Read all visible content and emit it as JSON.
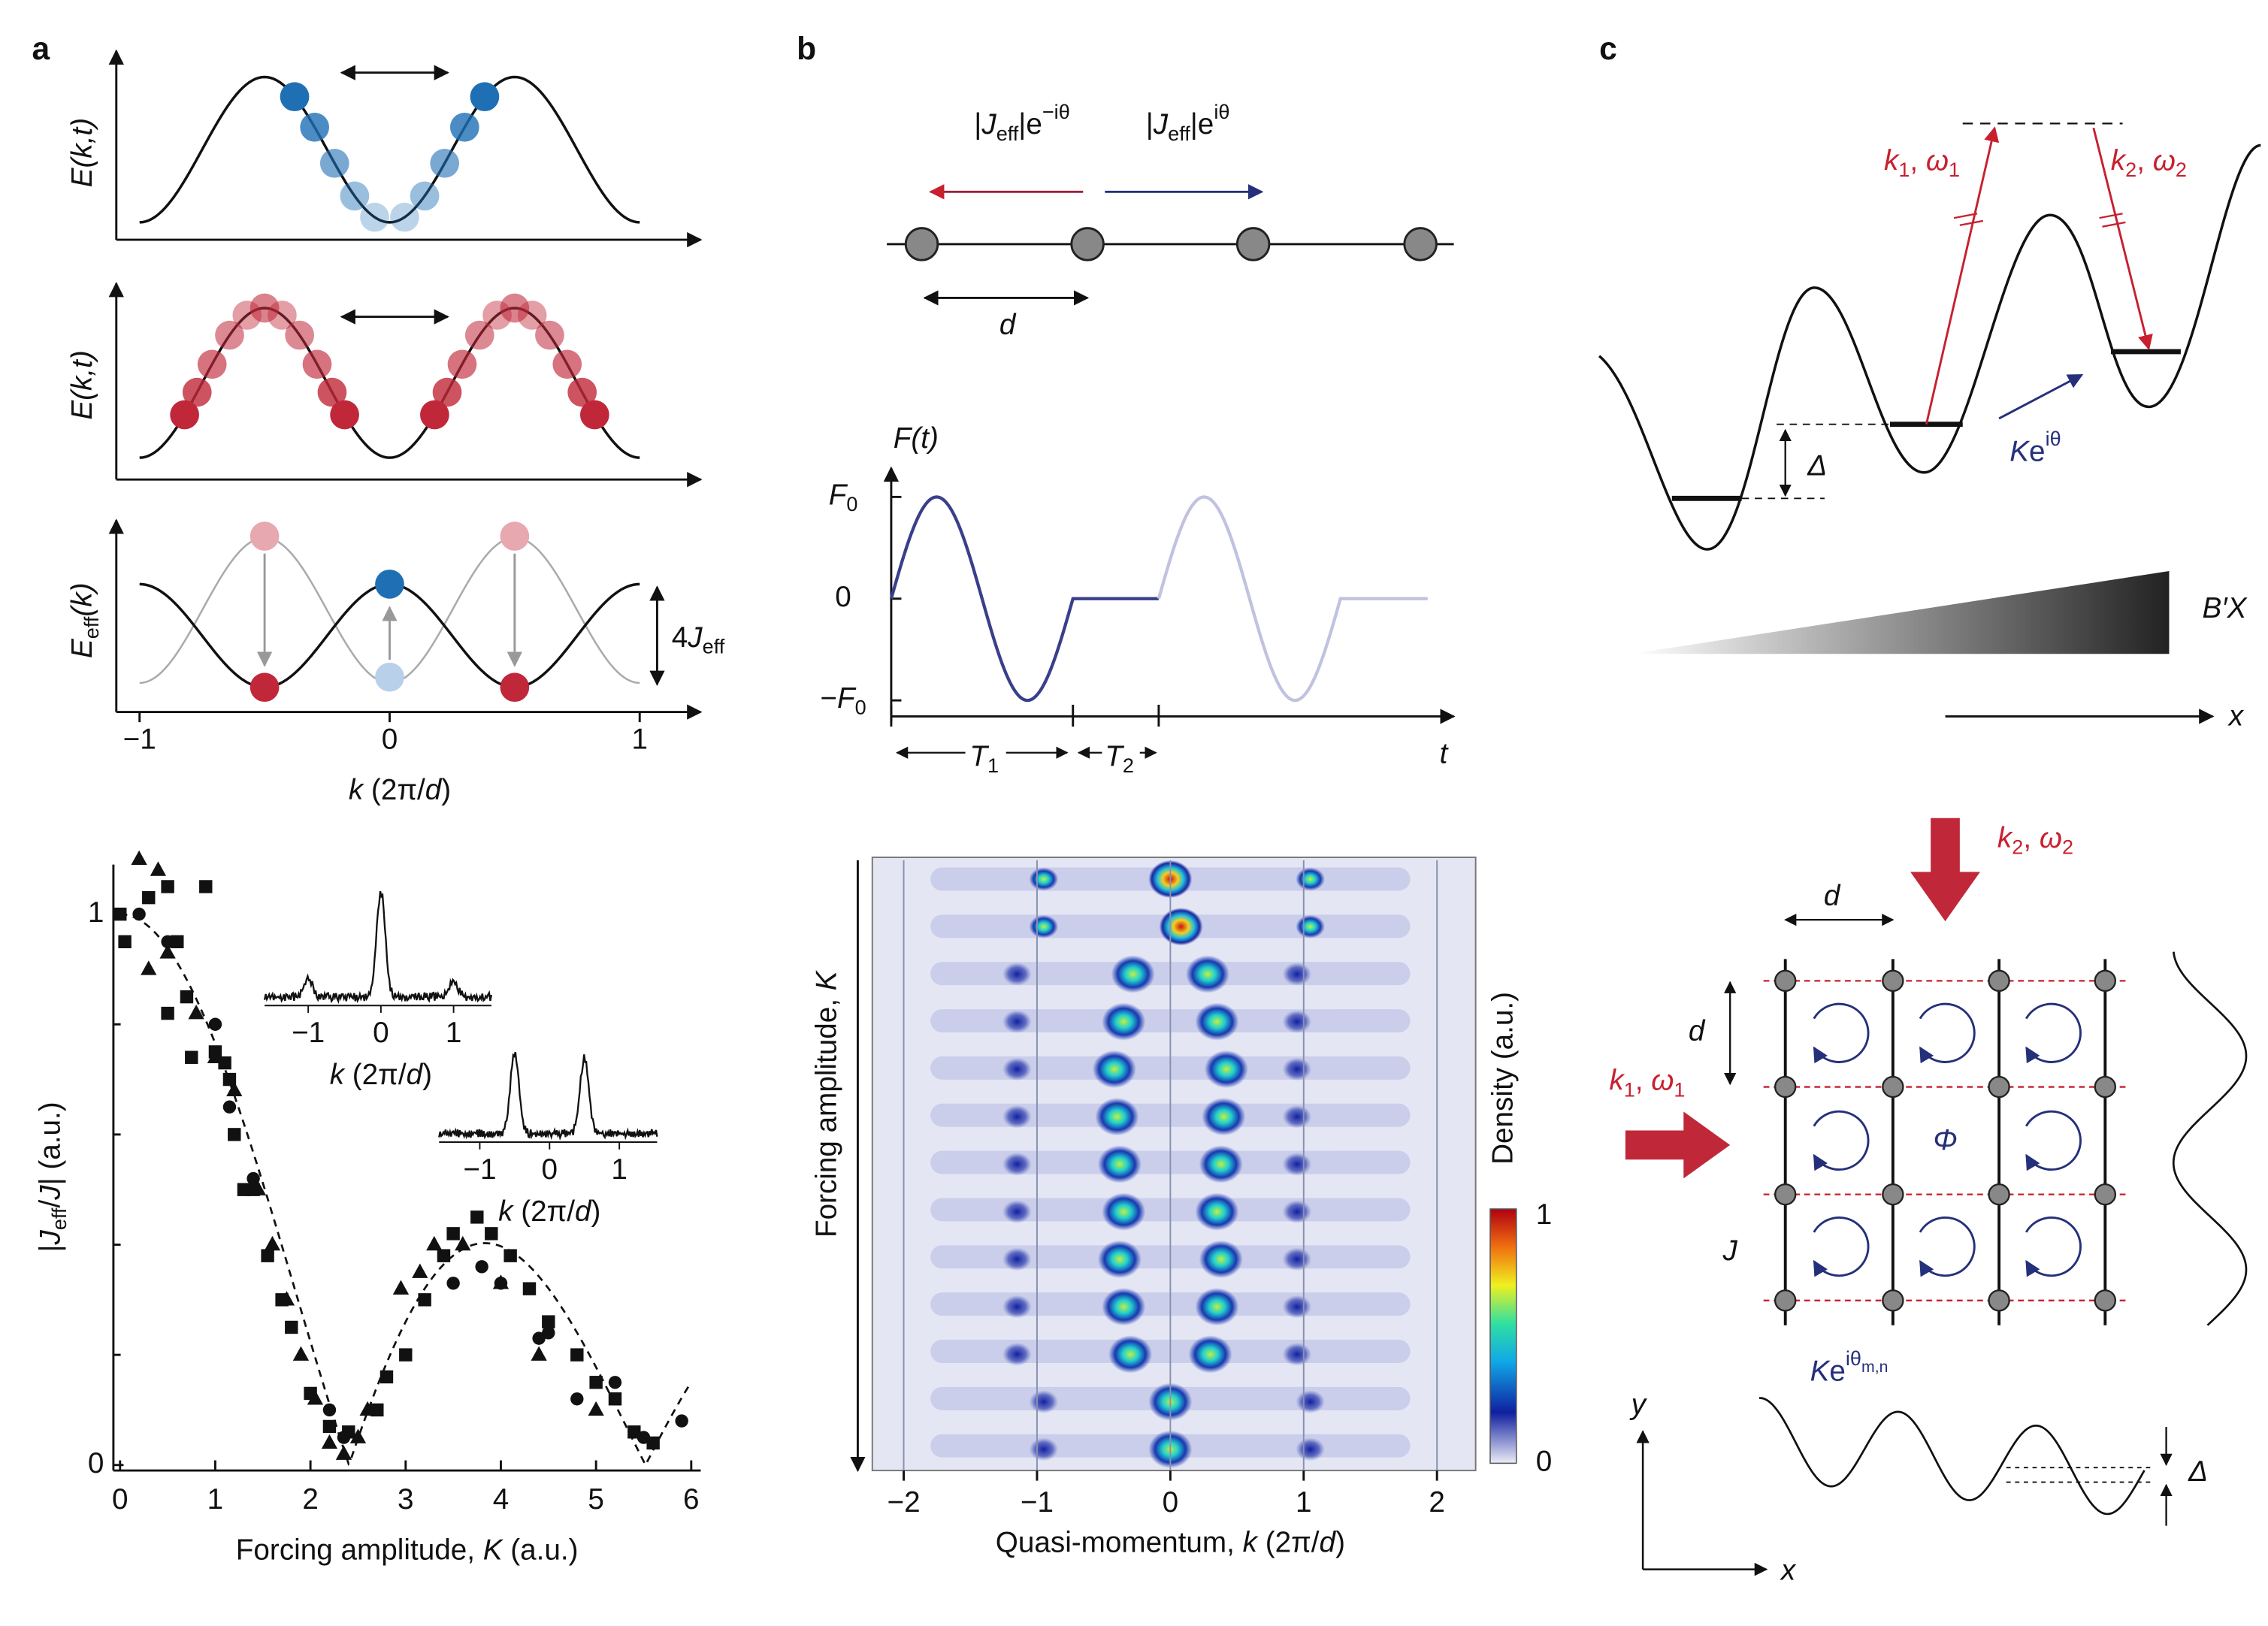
{
  "panel_labels": [
    "a",
    "b",
    "c"
  ],
  "a": {
    "E_kt": [
      {
        "t": "E(k,t)",
        "s": "i"
      }
    ],
    "E_eff": [
      {
        "t": "E",
        "s": "i"
      },
      {
        "t": "eff",
        "s": "sub"
      },
      {
        "t": "(k)",
        "s": "i"
      }
    ],
    "four_J_eff": [
      {
        "t": "4"
      },
      {
        "t": "J",
        "s": "i"
      },
      {
        "t": "eff",
        "s": "sub"
      }
    ],
    "k_ticks": [
      {
        "value": -1,
        "label": "−1"
      },
      0,
      1
    ],
    "k_label": [
      {
        "t": "k",
        "s": "i"
      },
      {
        "t": " (2π/"
      },
      {
        "t": "d",
        "s": "i"
      },
      {
        "t": ")"
      }
    ],
    "scatter": {
      "xlim": [
        -0.07,
        6.1
      ],
      "ylim": [
        -0.01,
        1.09
      ],
      "xticks": [
        0,
        1,
        2,
        3,
        4,
        5,
        6
      ],
      "yticks": [
        0,
        1
      ],
      "y_minor_ticks": [
        0.2,
        0.4,
        0.6,
        0.8
      ],
      "x_label": [
        {
          "t": "Forcing amplitude, "
        },
        {
          "t": "K",
          "s": "i"
        },
        {
          "t": " (a.u.)"
        }
      ],
      "y_label": [
        {
          "t": "|"
        },
        {
          "t": "J",
          "s": "i"
        },
        {
          "t": "eff",
          "s": "sub"
        },
        {
          "t": "/"
        },
        {
          "t": "J",
          "s": "i"
        },
        {
          "t": "| (a.u.)"
        }
      ],
      "series": [
        {
          "marker": "square",
          "x": [
            0,
            0.05,
            0.3,
            0.5,
            0.6,
            0.9,
            0.5,
            0.7,
            0.75,
            1.0,
            1.1,
            1.15,
            1.2,
            1.3,
            1.4,
            1.55,
            1.7,
            1.8,
            2.0,
            2.2,
            2.4,
            2.7,
            2.8,
            3.0,
            3.2,
            3.4,
            3.5,
            3.75,
            3.9,
            4.1,
            4.3,
            4.5,
            4.8,
            5.0,
            5.2,
            5.4,
            5.6
          ],
          "y": [
            1.0,
            0.95,
            1.03,
            1.05,
            0.95,
            1.05,
            0.82,
            0.85,
            0.74,
            0.75,
            0.73,
            0.7,
            0.6,
            0.5,
            0.5,
            0.38,
            0.3,
            0.25,
            0.13,
            0.07,
            0.06,
            0.1,
            0.16,
            0.2,
            0.3,
            0.38,
            0.42,
            0.45,
            0.42,
            0.38,
            0.32,
            0.26,
            0.2,
            0.15,
            0.12,
            0.06,
            0.04
          ]
        },
        {
          "marker": "triangle",
          "x": [
            0.2,
            0.4,
            0.3,
            0.5,
            0.8,
            1.0,
            1.2,
            1.45,
            1.6,
            1.75,
            1.9,
            2.05,
            2.2,
            2.35,
            2.5,
            2.6,
            2.95,
            3.15,
            3.3,
            3.6,
            4.0,
            4.4,
            5.0
          ],
          "y": [
            1.1,
            1.08,
            0.9,
            0.93,
            0.82,
            0.74,
            0.68,
            0.5,
            0.4,
            0.3,
            0.2,
            0.12,
            0.04,
            0.02,
            0.05,
            0.1,
            0.32,
            0.35,
            0.4,
            0.4,
            0.33,
            0.2,
            0.1
          ]
        },
        {
          "marker": "circle",
          "x": [
            0.2,
            0.5,
            1.0,
            1.15,
            1.4,
            2.2,
            2.35,
            3.5,
            3.8,
            4.0,
            4.4,
            4.5,
            4.8,
            5.2,
            5.5,
            5.9
          ],
          "y": [
            1.0,
            0.95,
            0.8,
            0.65,
            0.52,
            0.1,
            0.05,
            0.33,
            0.36,
            0.33,
            0.23,
            0.24,
            0.12,
            0.15,
            0.05,
            0.08
          ]
        }
      ],
      "insets": [
        {
          "ticks": [
            {
              "value": -1,
              "label": "−1"
            },
            0,
            1
          ],
          "x_label": [
            {
              "t": "k",
              "s": "i"
            },
            {
              "t": " (2π/"
            },
            {
              "t": "d",
              "s": "i"
            },
            {
              "t": ")"
            }
          ]
        },
        {
          "ticks": [
            {
              "value": -1,
              "label": "−1"
            },
            0,
            1
          ],
          "x_label": [
            {
              "t": "k",
              "s": "i"
            },
            {
              "t": " (2π/"
            },
            {
              "t": "d",
              "s": "i"
            },
            {
              "t": ")"
            }
          ]
        }
      ]
    }
  },
  "b": {
    "hop_left": [
      {
        "t": "|"
      },
      {
        "t": "J",
        "s": "i"
      },
      {
        "t": "eff",
        "s": "sub"
      },
      {
        "t": "|e"
      },
      {
        "t": "−iθ",
        "s": "sup"
      }
    ],
    "hop_right": [
      {
        "t": "|"
      },
      {
        "t": "J",
        "s": "i"
      },
      {
        "t": "eff",
        "s": "sub"
      },
      {
        "t": "|e"
      },
      {
        "t": "iθ",
        "s": "sup"
      }
    ],
    "d": [
      {
        "t": "d",
        "s": "i"
      }
    ],
    "F_label": [
      {
        "t": "F(t)",
        "s": "i"
      }
    ],
    "F_ticks": [
      {
        "value": 1,
        "label": [
          {
            "t": "F",
            "s": "i"
          },
          {
            "t": "0",
            "s": "sub"
          }
        ]
      },
      0,
      {
        "value": -1,
        "label": [
          {
            "t": "−"
          },
          {
            "t": "F",
            "s": "i"
          },
          {
            "t": "0",
            "s": "sub"
          }
        ]
      }
    ],
    "t": [
      {
        "t": "t",
        "s": "i"
      }
    ],
    "T1": [
      {
        "t": "T",
        "s": "i"
      },
      {
        "t": "1",
        "s": "sub"
      }
    ],
    "T2": [
      {
        "t": "T",
        "s": "i"
      },
      {
        "t": "2",
        "s": "sub"
      }
    ],
    "density": {
      "xticks": [
        {
          "value": -2,
          "label": "−2"
        },
        {
          "value": -1,
          "label": "−1"
        },
        0,
        1,
        2
      ],
      "x_label": [
        {
          "t": "Quasi-momentum, "
        },
        {
          "t": "k",
          "s": "i"
        },
        {
          "t": " (2π/"
        },
        {
          "t": "d",
          "s": "i"
        },
        {
          "t": ")"
        }
      ],
      "y_label": [
        {
          "t": "Forcing amplitude, "
        },
        {
          "t": "K",
          "s": "i"
        }
      ],
      "colorbar_label": "Density (a.u.)",
      "colorbar_ticks": [
        0,
        1
      ]
    }
  },
  "c": {
    "k1w1": [
      {
        "t": "k",
        "s": "i"
      },
      {
        "t": "1",
        "s": "sub"
      },
      {
        "t": ", "
      },
      {
        "t": "ω",
        "s": "i"
      },
      {
        "t": "1",
        "s": "sub"
      }
    ],
    "k2w2": [
      {
        "t": "k",
        "s": "i"
      },
      {
        "t": "2",
        "s": "sub"
      },
      {
        "t": ", "
      },
      {
        "t": "ω",
        "s": "i"
      },
      {
        "t": "2",
        "s": "sub"
      }
    ],
    "K_phase": [
      {
        "t": "K",
        "s": "i"
      },
      {
        "t": "e"
      },
      {
        "t": "iθ",
        "s": "sup"
      }
    ],
    "delta": [
      {
        "t": "Δ",
        "s": "i"
      }
    ],
    "BX": [
      {
        "t": "B′X",
        "s": "i"
      }
    ],
    "x": [
      {
        "t": "x",
        "s": "i"
      }
    ],
    "lattice": {
      "k2w2": [
        {
          "t": "k",
          "s": "i"
        },
        {
          "t": "2",
          "s": "sub"
        },
        {
          "t": ", "
        },
        {
          "t": "ω",
          "s": "i"
        },
        {
          "t": "2",
          "s": "sub"
        }
      ],
      "k1w1": [
        {
          "t": "k",
          "s": "i"
        },
        {
          "t": "1",
          "s": "sub"
        },
        {
          "t": ", "
        },
        {
          "t": "ω",
          "s": "i"
        },
        {
          "t": "1",
          "s": "sub"
        }
      ],
      "d_h": [
        {
          "t": "d",
          "s": "i"
        }
      ],
      "d_v": [
        {
          "t": "d",
          "s": "i"
        }
      ],
      "J": [
        {
          "t": "J",
          "s": "i"
        }
      ],
      "Phi": [
        {
          "t": "Φ",
          "s": "i"
        }
      ],
      "K_phase_mn": [
        {
          "t": "K",
          "s": "i"
        },
        {
          "t": "e"
        },
        {
          "t": "iθ",
          "s": "sup"
        },
        {
          "t": "m,n",
          "s": "supsub"
        }
      ],
      "delta": [
        {
          "t": "Δ",
          "s": "i"
        }
      ],
      "y": [
        {
          "t": "y",
          "s": "i"
        }
      ],
      "x": [
        {
          "t": "x",
          "s": "i"
        }
      ]
    }
  }
}
